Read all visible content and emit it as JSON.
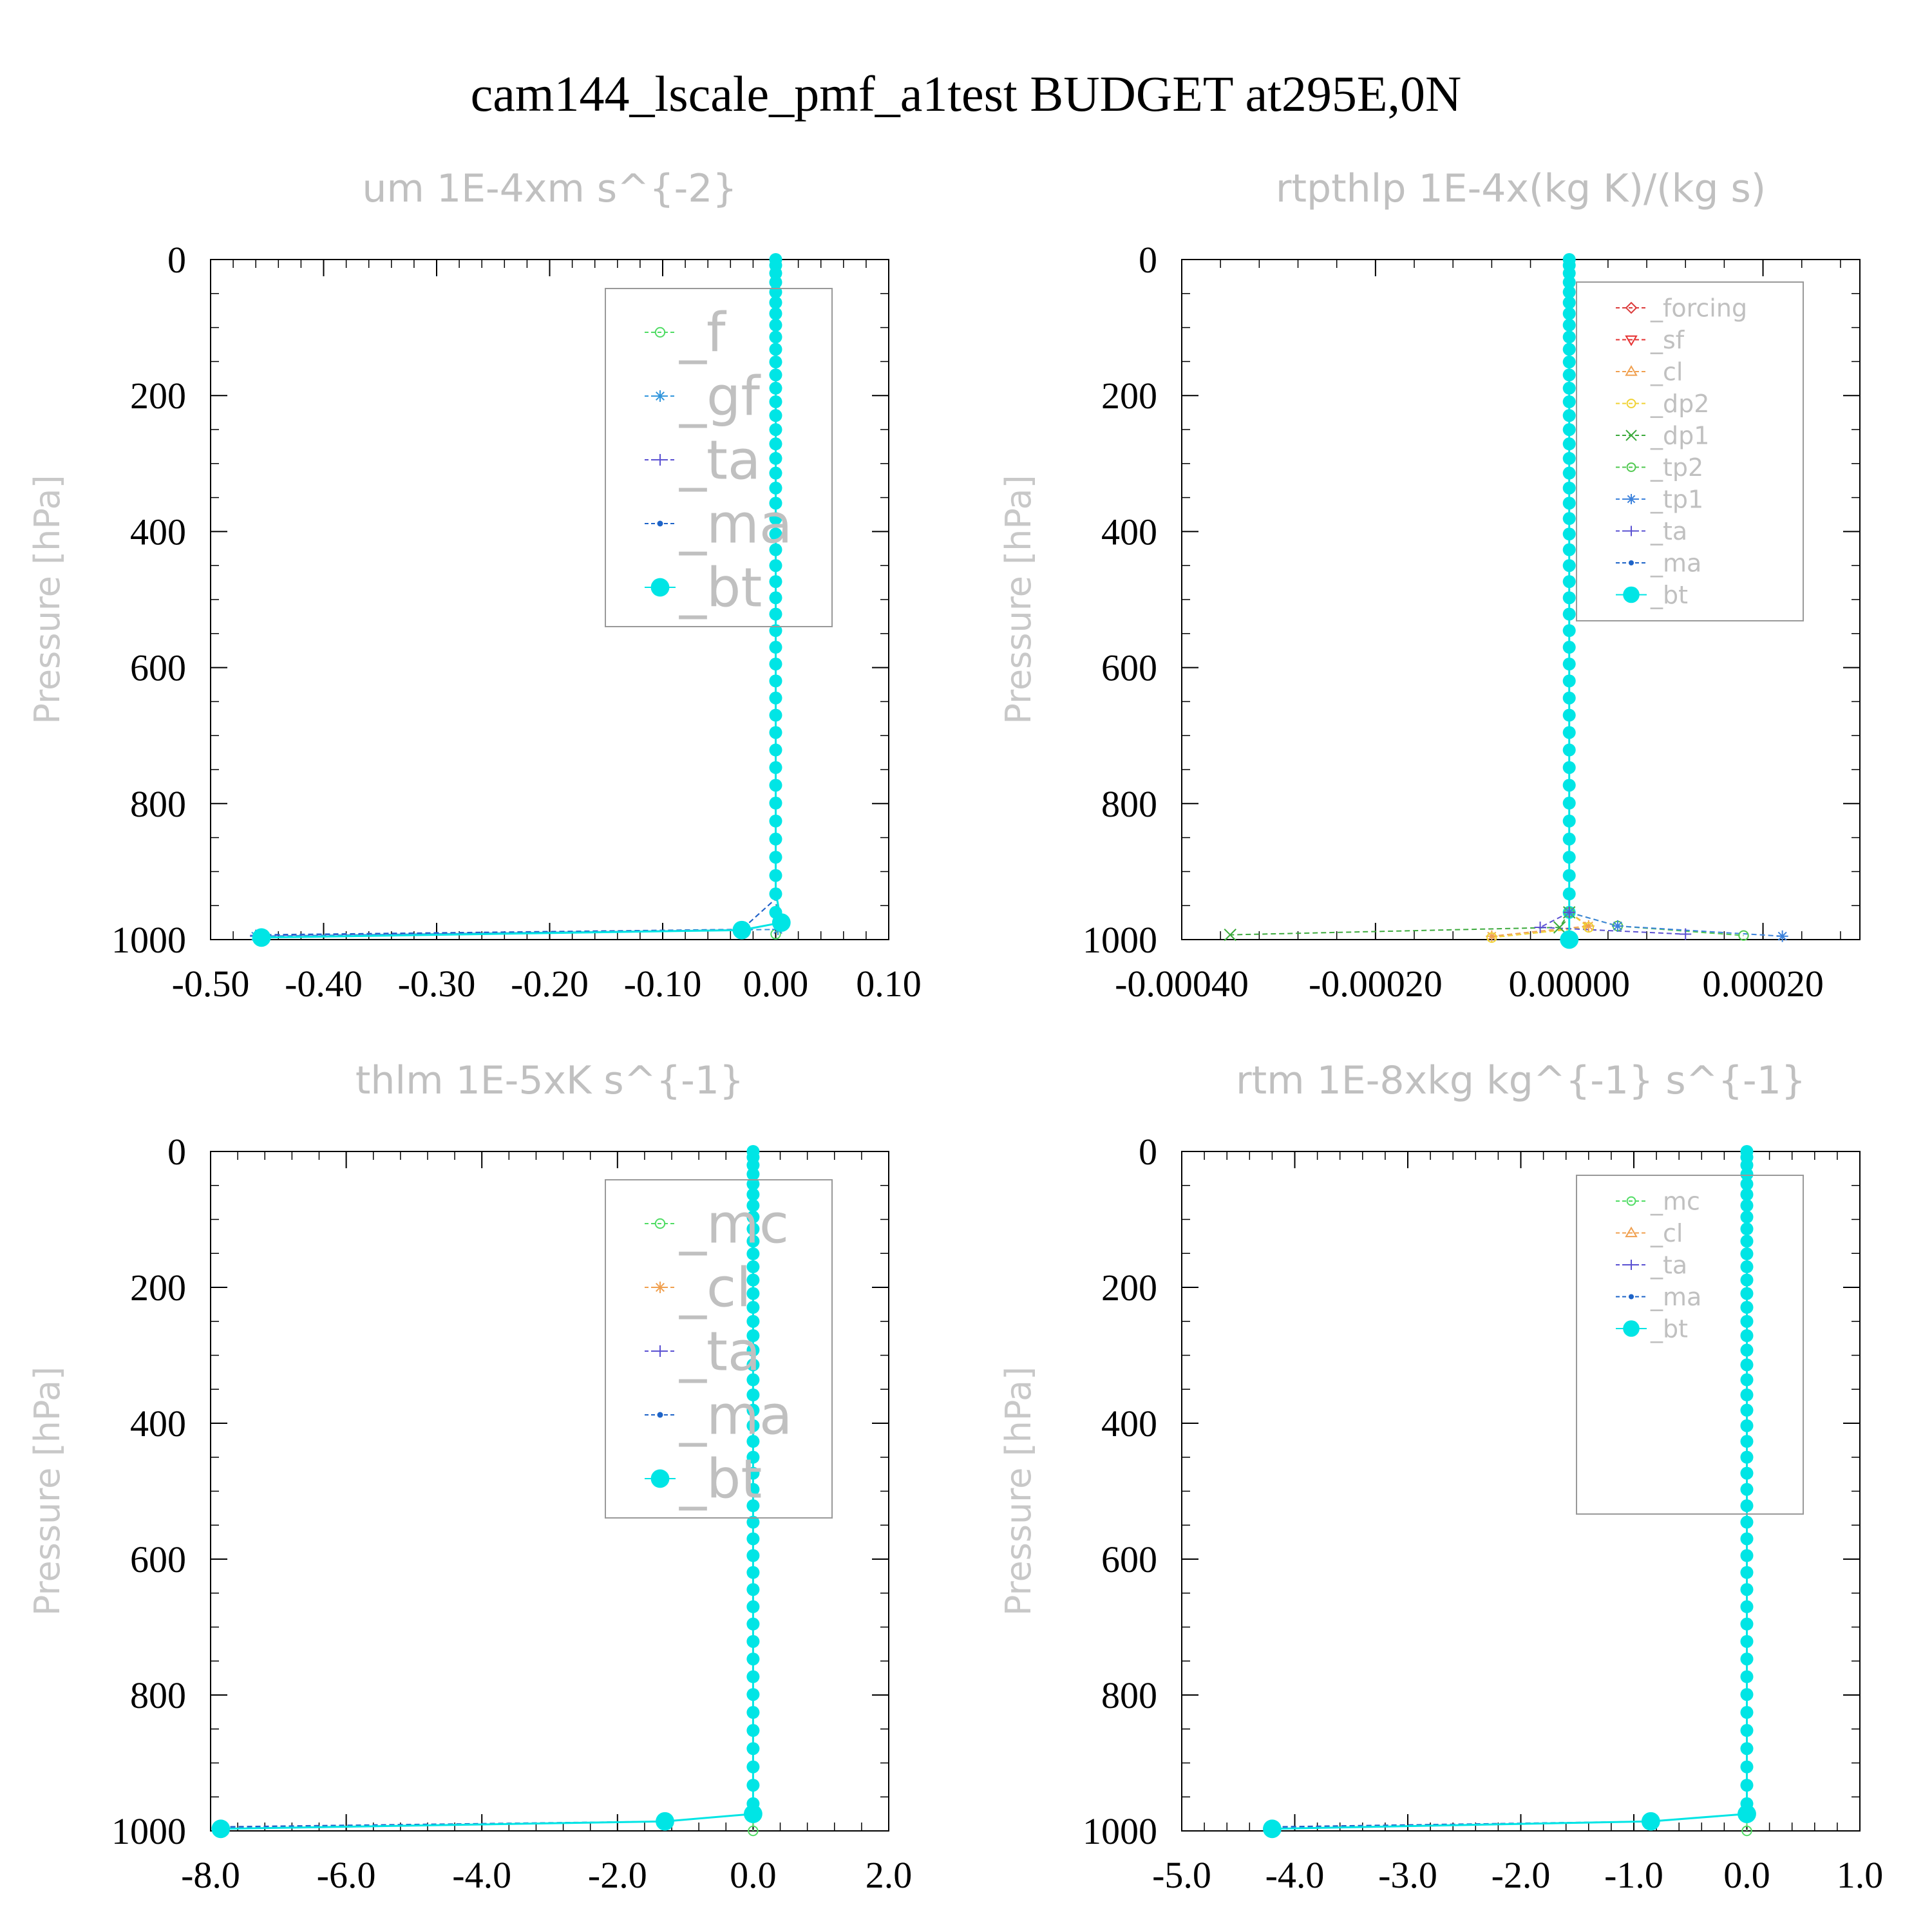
{
  "title": "cam144_lscale_pmf_a1test  BUDGET at295E,0N",
  "colors": {
    "bt": "#00e5e5",
    "ma": "#1e64c8",
    "ta": "#5a50d2",
    "tp1": "#3c82dc",
    "tp2": "#50c850",
    "dp1": "#3caa3c",
    "dp2": "#f0d232",
    "cl": "#f0a050",
    "sf": "#e63232",
    "forcing": "#dc3c3c",
    "mc": "#50dc64",
    "gf": "#3296dc",
    "f": "#50dc64"
  },
  "panels": [
    {
      "title": "um  1E-4xm s^{-2}",
      "ylabel": "Pressure [hPa]",
      "xticks": [
        "-0.50",
        "-0.40",
        "-0.30",
        "-0.20",
        "-0.10",
        "0.00",
        "0.10"
      ],
      "yticks": [
        "0",
        "200",
        "400",
        "600",
        "800",
        "1000"
      ],
      "legend": [
        "_f",
        "_gf",
        "_ta",
        "_ma",
        "_bt"
      ]
    },
    {
      "title": "rtpthlp  1E-4x(kg K)/(kg s)",
      "ylabel": "Pressure [hPa]",
      "xticks": [
        "-0.00040",
        "-0.00020",
        "0.00000",
        "0.00020"
      ],
      "yticks": [
        "0",
        "200",
        "400",
        "600",
        "800",
        "1000"
      ],
      "legend": [
        "_forcing",
        "_sf",
        "_cl",
        "_dp2",
        "_dp1",
        "_tp2",
        "_tp1",
        "_ta",
        "_ma",
        "_bt"
      ]
    },
    {
      "title": "thlm  1E-5xK s^{-1}",
      "ylabel": "Pressure [hPa]",
      "xticks": [
        "-8.0",
        "-6.0",
        "-4.0",
        "-2.0",
        "0.0",
        "2.0"
      ],
      "yticks": [
        "0",
        "200",
        "400",
        "600",
        "800",
        "1000"
      ],
      "legend": [
        "_mc",
        "_cl",
        "_ta",
        "_ma",
        "_bt"
      ]
    },
    {
      "title": "rtm  1E-8xkg kg^{-1} s^{-1}",
      "ylabel": "Pressure [hPa]",
      "xticks": [
        "-5.0",
        "-4.0",
        "-3.0",
        "-2.0",
        "-1.0",
        "0.0",
        "1.0"
      ],
      "yticks": [
        "0",
        "200",
        "400",
        "600",
        "800",
        "1000"
      ],
      "legend": [
        "_mc",
        "_cl",
        "_ta",
        "_ma",
        "_bt"
      ]
    }
  ],
  "chart_data": [
    {
      "type": "line",
      "title": "um  1E-4xm s^{-2}",
      "ylabel": "Pressure [hPa]",
      "xlim": [
        -0.5,
        0.1
      ],
      "ylim": [
        1000,
        0
      ],
      "series": [
        {
          "name": "_f",
          "x": [
            0.0,
            0.0,
            0.005,
            0.0
          ],
          "y": [
            0,
            940,
            975,
            992
          ]
        },
        {
          "name": "_gf",
          "x": [
            0.0,
            0.0,
            0.002,
            -0.46
          ],
          "y": [
            0,
            940,
            985,
            995
          ]
        },
        {
          "name": "_ta",
          "x": [
            0.0,
            0.0,
            -0.03,
            -0.46
          ],
          "y": [
            0,
            940,
            985,
            994
          ]
        },
        {
          "name": "_ma",
          "x": [
            0.0,
            0.0,
            -0.03,
            -0.46
          ],
          "y": [
            0,
            940,
            985,
            993
          ]
        },
        {
          "name": "_bt",
          "x": [
            0.0,
            0.0,
            0.005,
            -0.03,
            -0.455
          ],
          "y": [
            0,
            930,
            975,
            986,
            997
          ]
        }
      ]
    },
    {
      "type": "line",
      "title": "rtpthlp  1E-4x(kg K)/(kg s)",
      "ylabel": "Pressure [hPa]",
      "xlim": [
        -0.0004,
        0.0003
      ],
      "ylim": [
        1000,
        0
      ],
      "series": [
        {
          "name": "_forcing",
          "x": [
            0.0,
            0.0
          ],
          "y": [
            0,
            1000
          ]
        },
        {
          "name": "_sf",
          "x": [
            0.0,
            0.0
          ],
          "y": [
            0,
            1000
          ]
        },
        {
          "name": "_cl",
          "x": [
            0.0,
            0.0,
            2e-05,
            -8e-05
          ],
          "y": [
            0,
            960,
            980,
            995
          ]
        },
        {
          "name": "_dp2",
          "x": [
            0.0,
            0.0,
            2e-05,
            -8e-05
          ],
          "y": [
            0,
            960,
            982,
            997
          ]
        },
        {
          "name": "_dp1",
          "x": [
            0.0,
            0.0,
            -1e-05,
            -0.00035
          ],
          "y": [
            0,
            960,
            982,
            993
          ]
        },
        {
          "name": "_tp2",
          "x": [
            0.0,
            0.0,
            5e-05,
            0.00018
          ],
          "y": [
            0,
            960,
            980,
            994
          ]
        },
        {
          "name": "_tp1",
          "x": [
            0.0,
            0.0,
            5e-05,
            0.00022
          ],
          "y": [
            0,
            960,
            980,
            995
          ]
        },
        {
          "name": "_ta",
          "x": [
            0.0,
            0.0,
            -3e-05,
            0.00012
          ],
          "y": [
            0,
            960,
            982,
            992
          ]
        },
        {
          "name": "_ma",
          "x": [
            0.0,
            0.0
          ],
          "y": [
            0,
            1000
          ]
        },
        {
          "name": "_bt",
          "x": [
            0.0,
            0.0
          ],
          "y": [
            0,
            1000
          ]
        }
      ]
    },
    {
      "type": "line",
      "title": "thlm  1E-5xK s^{-1}",
      "ylabel": "Pressure [hPa]",
      "xlim": [
        -8.0,
        2.0
      ],
      "ylim": [
        1000,
        0
      ],
      "series": [
        {
          "name": "_mc",
          "x": [
            0.0,
            0.0,
            0.0
          ],
          "y": [
            0,
            975,
            1000
          ]
        },
        {
          "name": "_cl",
          "x": [
            0.0,
            0.0,
            -1.3,
            -7.9
          ],
          "y": [
            0,
            975,
            986,
            996
          ]
        },
        {
          "name": "_ta",
          "x": [
            0.0,
            0.0,
            -1.3,
            -7.9
          ],
          "y": [
            0,
            975,
            986,
            995
          ]
        },
        {
          "name": "_ma",
          "x": [
            0.0,
            0.0,
            -1.3,
            -7.9
          ],
          "y": [
            0,
            975,
            986,
            994
          ]
        },
        {
          "name": "_bt",
          "x": [
            0.0,
            0.0,
            -1.3,
            -7.85
          ],
          "y": [
            0,
            975,
            986,
            997
          ]
        }
      ]
    },
    {
      "type": "line",
      "title": "rtm  1E-8xkg kg^{-1} s^{-1}",
      "ylabel": "Pressure [hPa]",
      "xlim": [
        -5.0,
        1.0
      ],
      "ylim": [
        1000,
        0
      ],
      "series": [
        {
          "name": "_mc",
          "x": [
            0.0,
            0.0,
            0.0
          ],
          "y": [
            0,
            975,
            1000
          ]
        },
        {
          "name": "_cl",
          "x": [
            0.0,
            0.0,
            -0.85,
            -4.2
          ],
          "y": [
            0,
            975,
            986,
            996
          ]
        },
        {
          "name": "_ta",
          "x": [
            0.0,
            0.0,
            -0.85,
            -4.2
          ],
          "y": [
            0,
            975,
            986,
            995
          ]
        },
        {
          "name": "_ma",
          "x": [
            0.0,
            0.0,
            -0.85,
            -4.2
          ],
          "y": [
            0,
            975,
            986,
            994
          ]
        },
        {
          "name": "_bt",
          "x": [
            0.0,
            0.0,
            -0.85,
            -4.2
          ],
          "y": [
            0,
            975,
            986,
            997
          ]
        }
      ]
    }
  ]
}
